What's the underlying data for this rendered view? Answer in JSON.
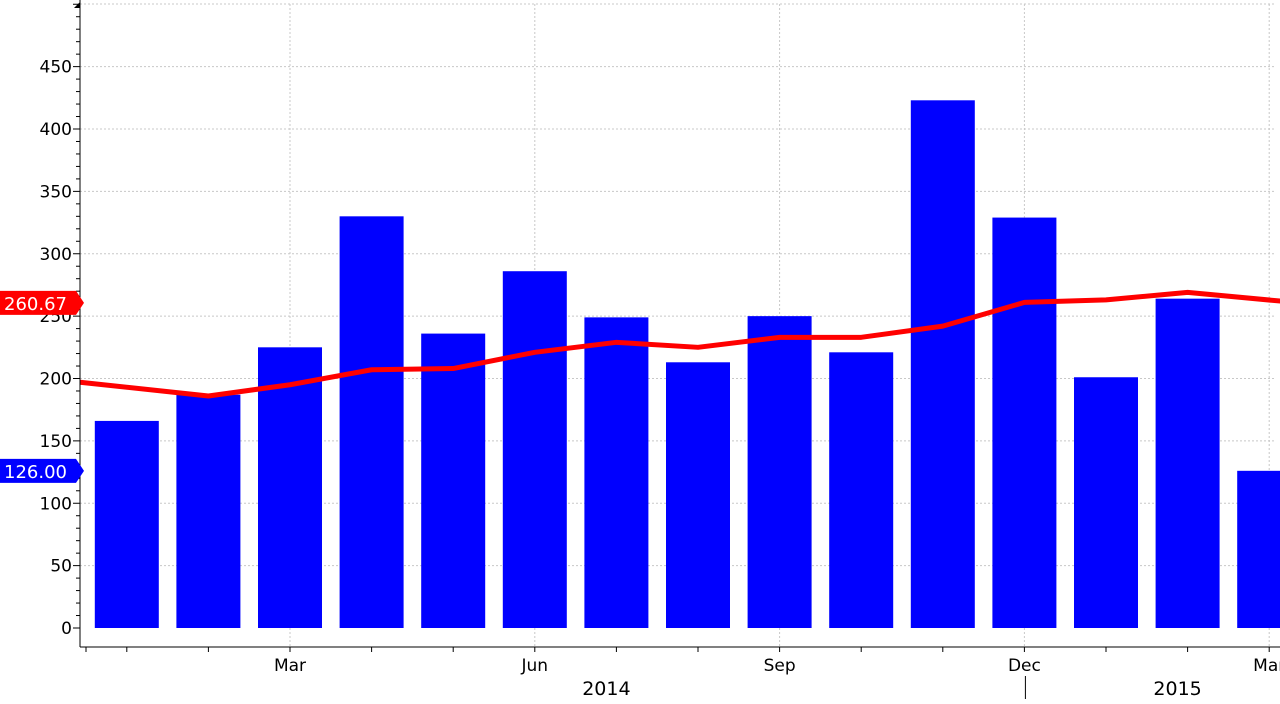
{
  "chart_data": {
    "type": "bar",
    "categories": [
      "2014-01",
      "2014-02",
      "2014-03",
      "2014-04",
      "2014-05",
      "2014-06",
      "2014-07",
      "2014-08",
      "2014-09",
      "2014-10",
      "2014-11",
      "2014-12",
      "2015-01",
      "2015-02",
      "2015-03"
    ],
    "series": [
      {
        "type": "bar",
        "color": "#0000ff",
        "values": [
          166,
          187,
          225,
          330,
          236,
          286,
          249,
          213,
          250,
          221,
          423,
          329,
          201,
          264,
          126
        ]
      },
      {
        "type": "line",
        "color": "#ff0000",
        "values": [
          197,
          186,
          195,
          207,
          208,
          221,
          229,
          225,
          233,
          233,
          242,
          261,
          263,
          269,
          260.67
        ]
      }
    ],
    "ylim": [
      0,
      500
    ],
    "yticks": [
      0,
      50,
      100,
      150,
      200,
      250,
      300,
      350,
      400,
      450
    ],
    "xticks": [
      {
        "label": "Mar",
        "date": "2014-03"
      },
      {
        "label": "Jun",
        "date": "2014-06"
      },
      {
        "label": "Sep",
        "date": "2014-09"
      },
      {
        "label": "Dec",
        "date": "2014-12"
      },
      {
        "label": "Mar",
        "date": "2015-03"
      }
    ],
    "years": [
      {
        "label": "2014",
        "date": "2014-07"
      },
      {
        "label": "2015",
        "date": "2015-02"
      }
    ],
    "last_value_flags": [
      {
        "label": "260.67",
        "value": 260.67,
        "color": "#ff0000"
      },
      {
        "label": "126.00",
        "value": 126.0,
        "color": "#0000ff"
      }
    ],
    "grid": true,
    "title": "",
    "xlabel": "",
    "ylabel": ""
  }
}
